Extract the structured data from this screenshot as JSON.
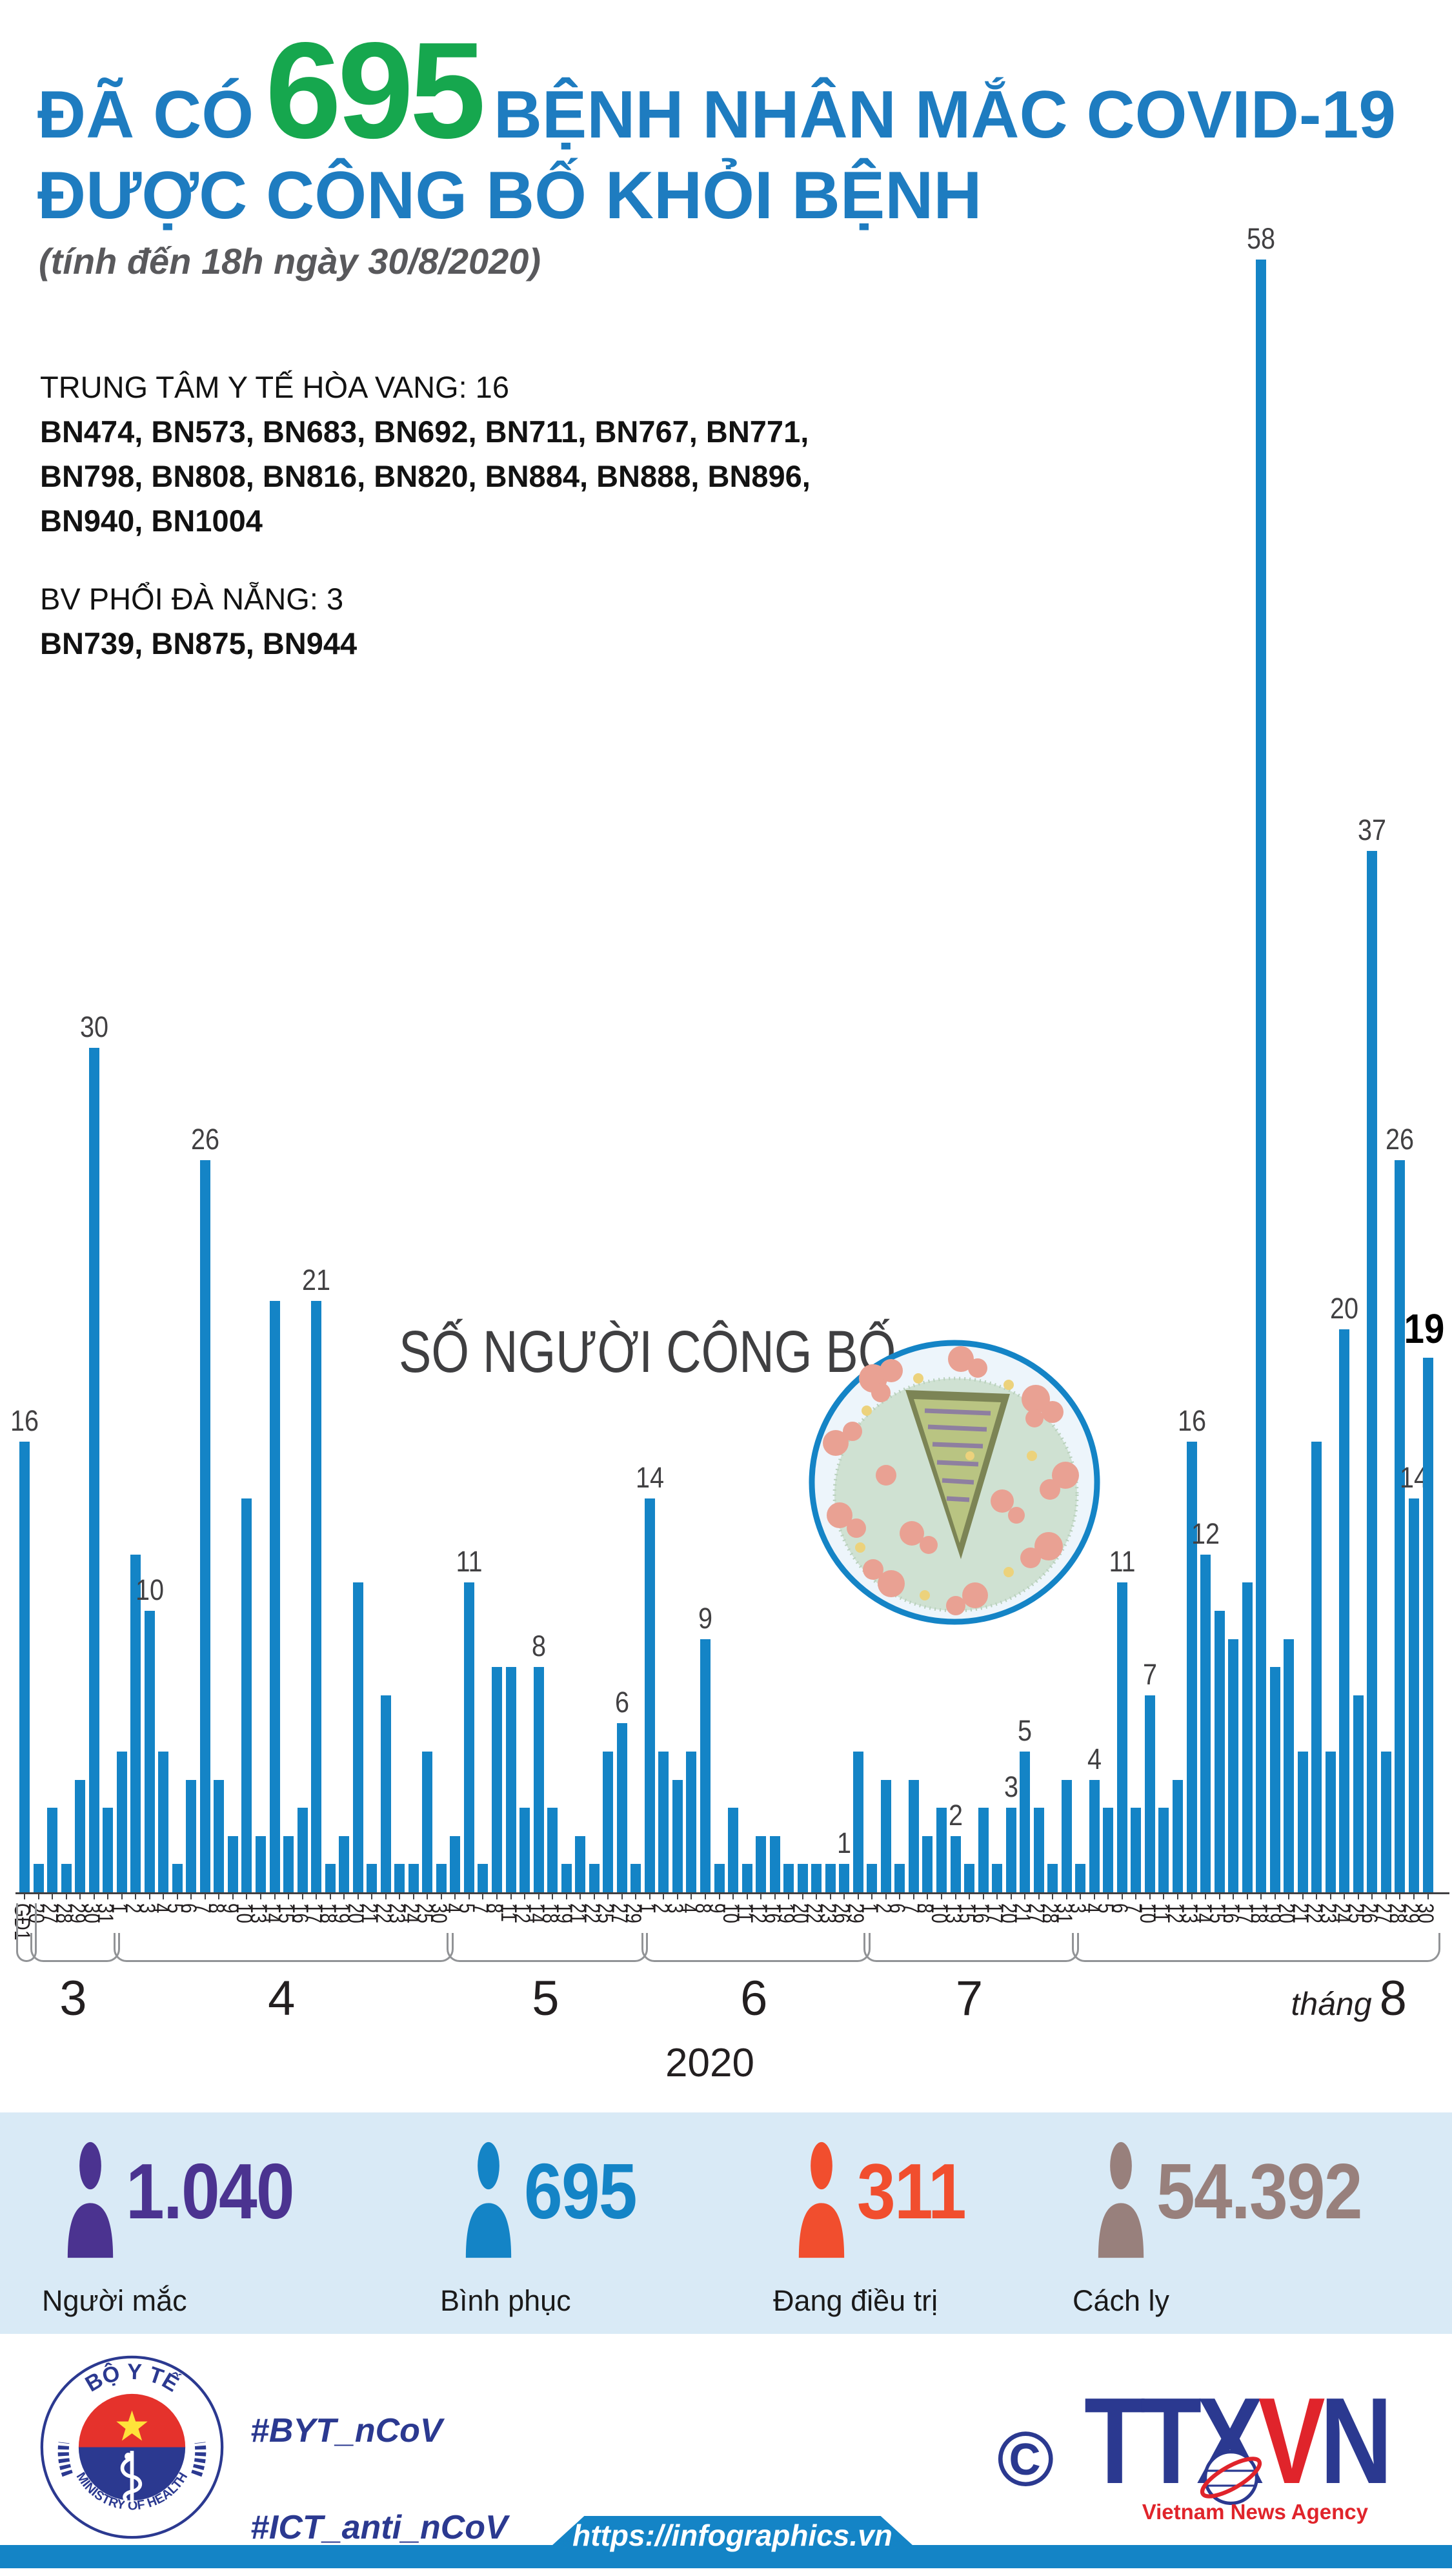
{
  "header": {
    "prefix": "ĐÃ CÓ",
    "count": "695",
    "suffix": "BỆNH NHÂN MẮC COVID-19",
    "line2": "ĐƯỢC CÔNG BỐ KHỎI BỆNH",
    "subtitle": "(tính đến 18h ngày 30/8/2020)"
  },
  "notes": {
    "block1_title": "TRUNG TÂM Y TẾ HÒA VANG: 16",
    "block1_lines": [
      "BN474, BN573, BN683, BN692, BN711, BN767, BN771,",
      "BN798, BN808, BN816, BN820, BN884, BN888, BN896,",
      "BN940, BN1004"
    ],
    "block2_title": "BV PHỔI ĐÀ NẴNG: 3",
    "block2_lines": [
      "BN739, BN875, BN944"
    ]
  },
  "chart_data": {
    "type": "bar",
    "title": "SỐ NGƯỜI CÔNG BỐ",
    "year": "2020",
    "ylim": [
      0,
      58
    ],
    "bar_color": "#1484c6",
    "bars": [
      {
        "date": "GĐ1",
        "value": 16,
        "show": true
      },
      {
        "date": "20",
        "value": 1
      },
      {
        "date": "27",
        "value": 3
      },
      {
        "date": "28",
        "value": 1
      },
      {
        "date": "29",
        "value": 4
      },
      {
        "date": "30",
        "value": 30,
        "show": true
      },
      {
        "date": "31",
        "value": 3
      },
      {
        "date": "1",
        "value": 5
      },
      {
        "date": "2",
        "value": 12
      },
      {
        "date": "3",
        "value": 10,
        "show": true
      },
      {
        "date": "4",
        "value": 5
      },
      {
        "date": "5",
        "value": 1
      },
      {
        "date": "6",
        "value": 4
      },
      {
        "date": "7",
        "value": 26,
        "show": true
      },
      {
        "date": "8",
        "value": 4
      },
      {
        "date": "9",
        "value": 2
      },
      {
        "date": "10",
        "value": 14
      },
      {
        "date": "13",
        "value": 2
      },
      {
        "date": "14",
        "value": 21
      },
      {
        "date": "15",
        "value": 2
      },
      {
        "date": "16",
        "value": 3
      },
      {
        "date": "17",
        "value": 21,
        "show": true
      },
      {
        "date": "18",
        "value": 1
      },
      {
        "date": "19",
        "value": 2
      },
      {
        "date": "20",
        "value": 11
      },
      {
        "date": "21",
        "value": 1
      },
      {
        "date": "22",
        "value": 7
      },
      {
        "date": "23",
        "value": 1
      },
      {
        "date": "24",
        "value": 1
      },
      {
        "date": "25",
        "value": 5
      },
      {
        "date": "30",
        "value": 1
      },
      {
        "date": "4",
        "value": 2
      },
      {
        "date": "5",
        "value": 11,
        "show": true
      },
      {
        "date": "7",
        "value": 1
      },
      {
        "date": "8",
        "value": 8
      },
      {
        "date": "11",
        "value": 8
      },
      {
        "date": "12",
        "value": 3
      },
      {
        "date": "14",
        "value": 8,
        "show": true
      },
      {
        "date": "18",
        "value": 3
      },
      {
        "date": "19",
        "value": 1
      },
      {
        "date": "21",
        "value": 2
      },
      {
        "date": "22",
        "value": 1
      },
      {
        "date": "25",
        "value": 5
      },
      {
        "date": "27",
        "value": 6,
        "show": true
      },
      {
        "date": "29",
        "value": 1
      },
      {
        "date": "1",
        "value": 14,
        "show": true
      },
      {
        "date": "2",
        "value": 5
      },
      {
        "date": "3",
        "value": 4
      },
      {
        "date": "4",
        "value": 5
      },
      {
        "date": "8",
        "value": 9,
        "show": true
      },
      {
        "date": "9",
        "value": 1
      },
      {
        "date": "10",
        "value": 3
      },
      {
        "date": "11",
        "value": 1
      },
      {
        "date": "12",
        "value": 2
      },
      {
        "date": "16",
        "value": 2
      },
      {
        "date": "19",
        "value": 1
      },
      {
        "date": "20",
        "value": 1
      },
      {
        "date": "22",
        "value": 1
      },
      {
        "date": "23",
        "value": 1
      },
      {
        "date": "26",
        "value": 1,
        "show": true
      },
      {
        "date": "29",
        "value": 5
      },
      {
        "date": "1",
        "value": 1
      },
      {
        "date": "2",
        "value": 4
      },
      {
        "date": "6",
        "value": 1
      },
      {
        "date": "7",
        "value": 4
      },
      {
        "date": "8",
        "value": 2
      },
      {
        "date": "10",
        "value": 3
      },
      {
        "date": "13",
        "value": 2,
        "show": true
      },
      {
        "date": "15",
        "value": 1
      },
      {
        "date": "16",
        "value": 3
      },
      {
        "date": "17",
        "value": 1
      },
      {
        "date": "20",
        "value": 3,
        "show": true
      },
      {
        "date": "21",
        "value": 5,
        "show": true
      },
      {
        "date": "27",
        "value": 3
      },
      {
        "date": "28",
        "value": 1
      },
      {
        "date": "31",
        "value": 4
      },
      {
        "date": "3",
        "value": 1
      },
      {
        "date": "4",
        "value": 4,
        "show": true
      },
      {
        "date": "5",
        "value": 3
      },
      {
        "date": "6",
        "value": 11,
        "show": true
      },
      {
        "date": "7",
        "value": 3
      },
      {
        "date": "10",
        "value": 7,
        "show": true
      },
      {
        "date": "11",
        "value": 3
      },
      {
        "date": "12",
        "value": 4
      },
      {
        "date": "13",
        "value": 16,
        "show": true
      },
      {
        "date": "14",
        "value": 12,
        "show": true
      },
      {
        "date": "15",
        "value": 10
      },
      {
        "date": "16",
        "value": 9
      },
      {
        "date": "17",
        "value": 11
      },
      {
        "date": "18",
        "value": 58,
        "show": true
      },
      {
        "date": "19",
        "value": 8
      },
      {
        "date": "20",
        "value": 9
      },
      {
        "date": "21",
        "value": 5
      },
      {
        "date": "22",
        "value": 16
      },
      {
        "date": "23",
        "value": 5
      },
      {
        "date": "24",
        "value": 20,
        "show": true
      },
      {
        "date": "25",
        "value": 7
      },
      {
        "date": "26",
        "value": 37,
        "show": true
      },
      {
        "date": "27",
        "value": 5
      },
      {
        "date": "28",
        "value": 26,
        "show": true
      },
      {
        "date": "29",
        "value": 14,
        "show": true
      },
      {
        "date": "30",
        "value": 19,
        "show": true,
        "emph": true
      }
    ],
    "groups": [
      {
        "label": "",
        "start": 0,
        "end": 0
      },
      {
        "label": "3",
        "start": 1,
        "end": 6
      },
      {
        "label": "4",
        "start": 7,
        "end": 30
      },
      {
        "label": "5",
        "start": 31,
        "end": 44
      },
      {
        "label": "6",
        "start": 45,
        "end": 60
      },
      {
        "label": "7",
        "start": 61,
        "end": 75
      },
      {
        "label": "8",
        "start": 76,
        "end": 101,
        "prefix": "tháng"
      }
    ]
  },
  "stats": {
    "items": [
      {
        "value": "1.040",
        "label": "Người mắc",
        "color": "#4b3390"
      },
      {
        "value": "695",
        "label": "Bình phục",
        "color": "#1484c6"
      },
      {
        "value": "311",
        "label": "Đang điều trị",
        "color": "#f14e2e"
      },
      {
        "value": "54.392",
        "label": "Cách ly",
        "color": "#98807c"
      }
    ]
  },
  "footer": {
    "hashtag1": "#BYT_nCoV",
    "hashtag2": "#ICT_anti_nCoV",
    "logo_top": "BỘ Y TẾ",
    "logo_bottom": "MINISTRY OF HEALTH",
    "copyright": "©",
    "agency_t1": "TT",
    "agency_x": "X",
    "agency_v": "V",
    "agency_n": "N",
    "agency_sub": "Vietnam News Agency",
    "url": "https://infographics.vn"
  },
  "colors": {
    "title_blue": "#1e7cc0",
    "count_green": "#16a74e",
    "bar_blue": "#1484c6",
    "stats_bg": "#d9eaf6",
    "navy": "#2b3990",
    "red": "#e0242b"
  }
}
